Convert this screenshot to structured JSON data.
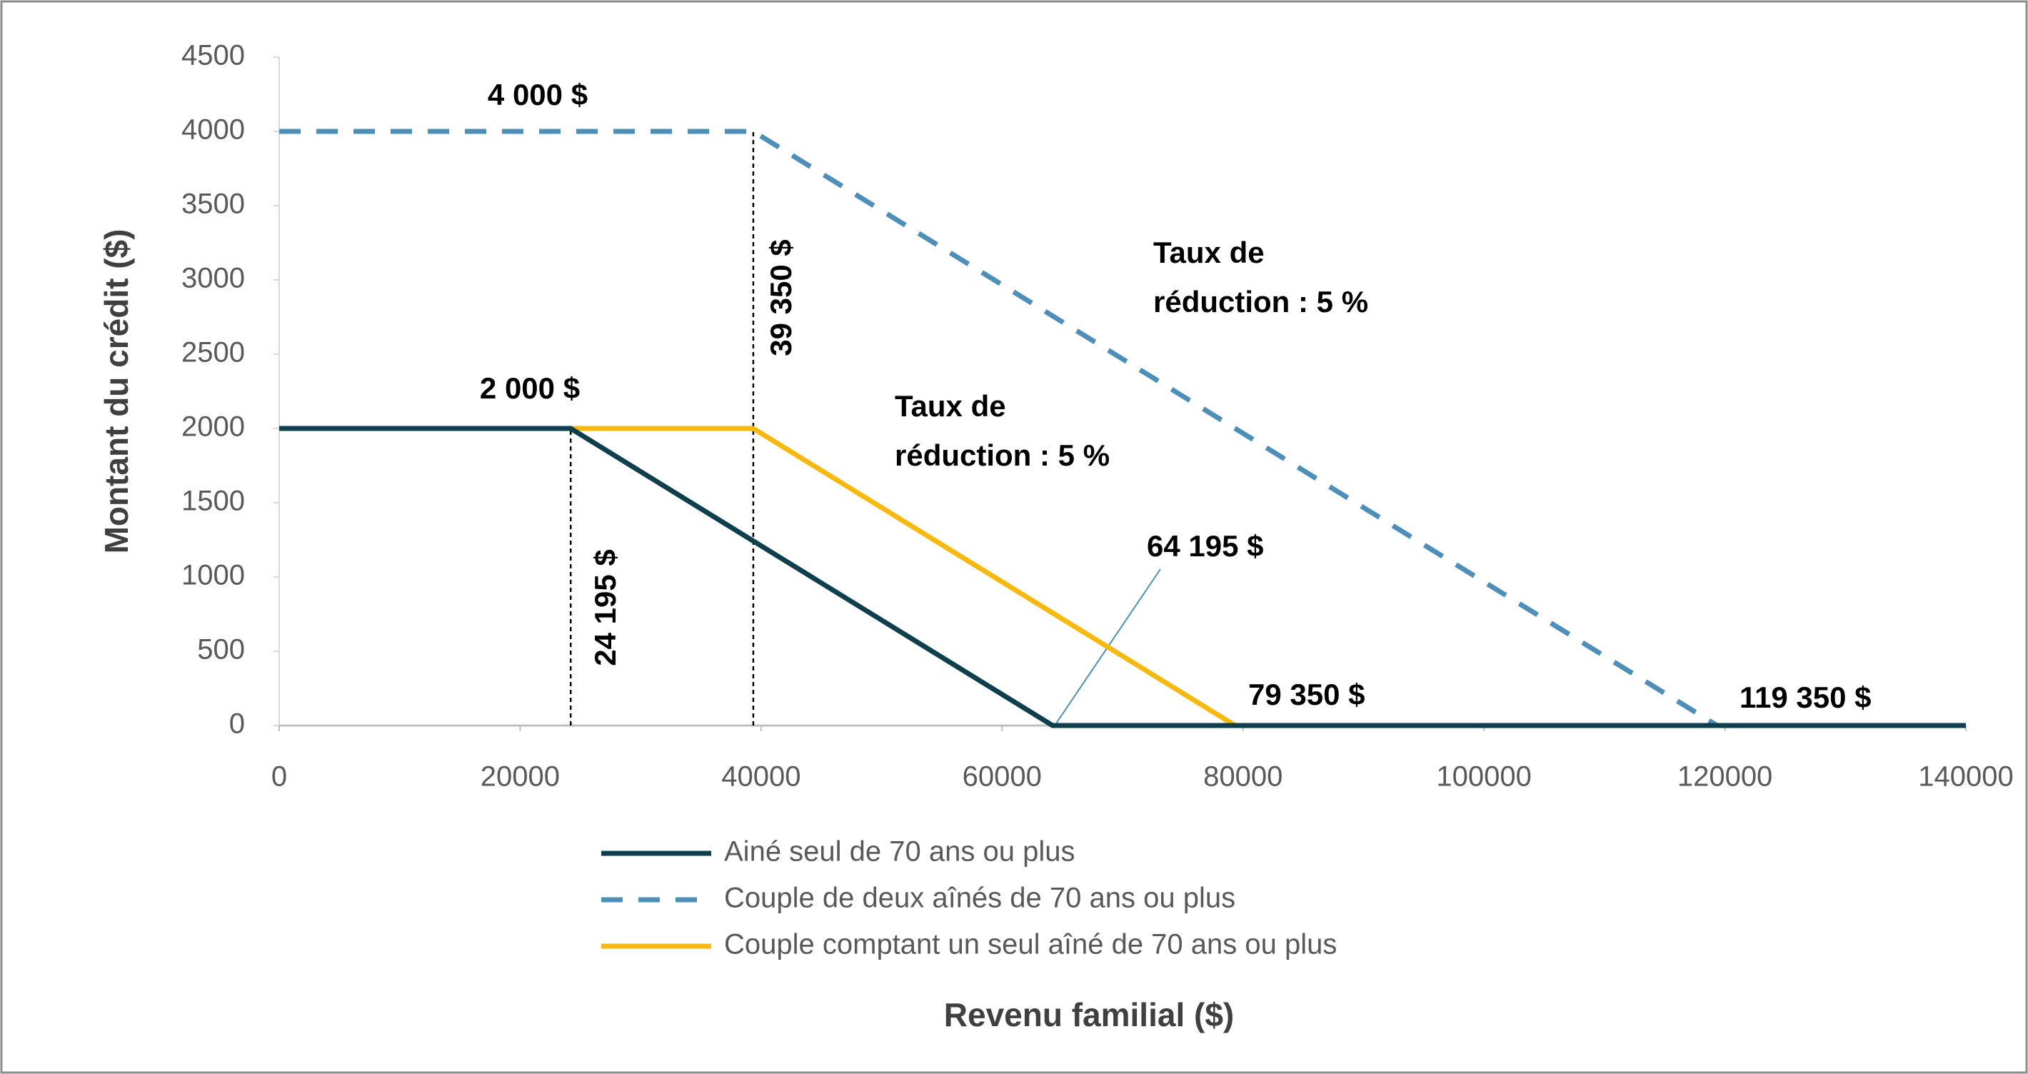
{
  "chart_data": {
    "type": "line",
    "xlabel": "Revenu familial ($)",
    "ylabel": "Montant du crédit ($)",
    "xlim": [
      0,
      140000
    ],
    "xticks": [
      0,
      20000,
      40000,
      60000,
      80000,
      100000,
      120000,
      140000
    ],
    "ylim": [
      0,
      4500
    ],
    "yticks": [
      0,
      500,
      1000,
      1500,
      2000,
      2500,
      3000,
      3500,
      4000,
      4500
    ],
    "grid": false,
    "series": [
      {
        "name": "Ainé seul de 70 ans ou plus",
        "color": "#0f3f4c",
        "dash": "solid",
        "x": [
          0,
          24195,
          64195,
          140000
        ],
        "values": [
          2000,
          2000,
          0,
          0
        ]
      },
      {
        "name": "Couple de deux aînés de 70 ans ou plus",
        "color": "#4d8fb8",
        "dash": "dashed",
        "x": [
          0,
          39350,
          119350,
          140000
        ],
        "values": [
          4000,
          4000,
          0,
          0
        ]
      },
      {
        "name": "Couple comptant un seul aîné de 70 ans ou plus",
        "color": "#f7b90f",
        "dash": "solid",
        "x": [
          0,
          39350,
          79350,
          140000
        ],
        "values": [
          2000,
          2000,
          0,
          0
        ]
      }
    ],
    "annotations": [
      {
        "lines": [
          "4 000 $"
        ]
      },
      {
        "lines": [
          "2 000 $"
        ]
      },
      {
        "lines": [
          "39 350 $"
        ]
      },
      {
        "lines": [
          "24 195 $"
        ]
      },
      {
        "lines": [
          "Taux de",
          "réduction : 5 %"
        ]
      },
      {
        "lines": [
          "Taux de",
          "réduction : 5 %"
        ]
      },
      {
        "lines": [
          "64 195 $"
        ]
      },
      {
        "lines": [
          "79 350 $"
        ]
      },
      {
        "lines": [
          "119 350 $"
        ]
      }
    ]
  }
}
